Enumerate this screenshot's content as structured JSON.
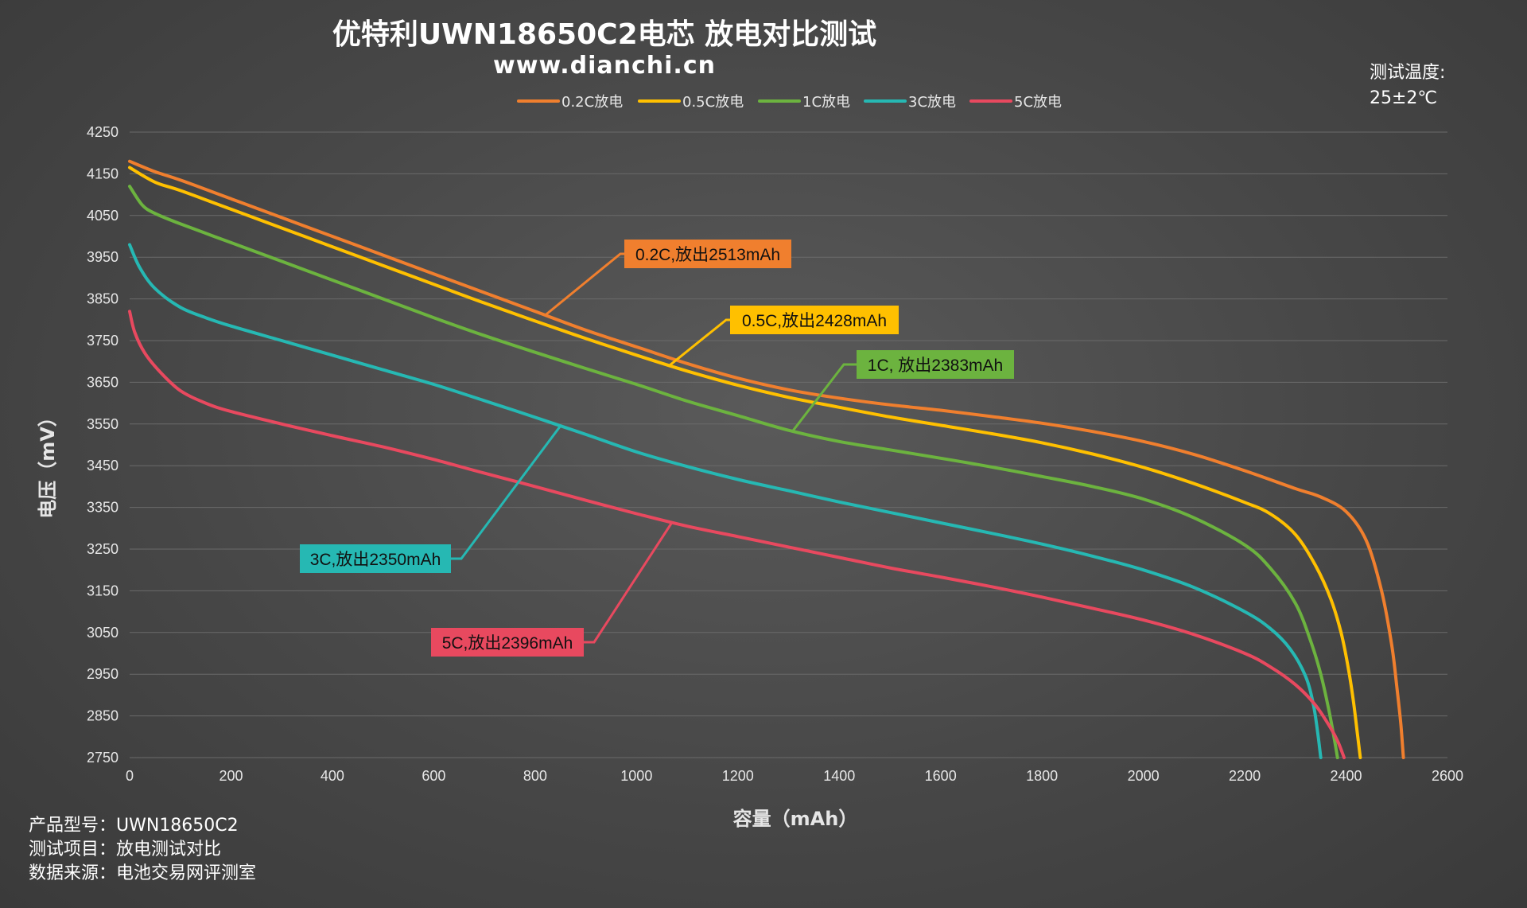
{
  "chart_data": {
    "type": "line",
    "title": "优特利UWN18650C2电芯 放电对比测试",
    "subtitle": "www.dianchi.cn",
    "xlabel": "容量（mAh）",
    "ylabel": "电压（mV）",
    "xlim": [
      0,
      2600
    ],
    "ylim": [
      2750,
      4250
    ],
    "xticks": [
      0,
      200,
      400,
      600,
      800,
      1000,
      1200,
      1400,
      1600,
      1800,
      2000,
      2200,
      2400,
      2600
    ],
    "yticks": [
      2750,
      2850,
      2950,
      3050,
      3150,
      3250,
      3350,
      3450,
      3550,
      3650,
      3750,
      3850,
      3950,
      4050,
      4150,
      4250
    ],
    "grid": "horizontal",
    "legend_position": "top-center",
    "temperature_label": "测试温度:",
    "temperature_value": "25±2℃",
    "series": [
      {
        "name": "0.2C放电",
        "color": "#f07f2e",
        "callout": "0.2C,放出2513mAh",
        "points": [
          [
            0,
            4180
          ],
          [
            50,
            4155
          ],
          [
            100,
            4135
          ],
          [
            200,
            4090
          ],
          [
            300,
            4045
          ],
          [
            400,
            4000
          ],
          [
            500,
            3955
          ],
          [
            600,
            3910
          ],
          [
            700,
            3865
          ],
          [
            800,
            3820
          ],
          [
            900,
            3775
          ],
          [
            1000,
            3735
          ],
          [
            1100,
            3695
          ],
          [
            1200,
            3660
          ],
          [
            1300,
            3632
          ],
          [
            1400,
            3612
          ],
          [
            1500,
            3596
          ],
          [
            1600,
            3583
          ],
          [
            1700,
            3568
          ],
          [
            1800,
            3552
          ],
          [
            1900,
            3532
          ],
          [
            2000,
            3508
          ],
          [
            2100,
            3477
          ],
          [
            2200,
            3438
          ],
          [
            2300,
            3395
          ],
          [
            2350,
            3375
          ],
          [
            2400,
            3340
          ],
          [
            2440,
            3270
          ],
          [
            2470,
            3150
          ],
          [
            2490,
            3020
          ],
          [
            2500,
            2920
          ],
          [
            2508,
            2830
          ],
          [
            2513,
            2750
          ]
        ]
      },
      {
        "name": "0.5C放电",
        "color": "#ffc000",
        "callout": "0.5C,放出2428mAh",
        "points": [
          [
            0,
            4165
          ],
          [
            50,
            4130
          ],
          [
            100,
            4110
          ],
          [
            200,
            4065
          ],
          [
            300,
            4020
          ],
          [
            400,
            3975
          ],
          [
            500,
            3930
          ],
          [
            600,
            3885
          ],
          [
            700,
            3840
          ],
          [
            800,
            3797
          ],
          [
            900,
            3755
          ],
          [
            1000,
            3715
          ],
          [
            1100,
            3677
          ],
          [
            1200,
            3643
          ],
          [
            1300,
            3614
          ],
          [
            1400,
            3590
          ],
          [
            1500,
            3567
          ],
          [
            1600,
            3547
          ],
          [
            1700,
            3527
          ],
          [
            1800,
            3505
          ],
          [
            1900,
            3478
          ],
          [
            2000,
            3446
          ],
          [
            2100,
            3407
          ],
          [
            2200,
            3362
          ],
          [
            2250,
            3335
          ],
          [
            2300,
            3285
          ],
          [
            2340,
            3210
          ],
          [
            2370,
            3130
          ],
          [
            2390,
            3050
          ],
          [
            2405,
            2960
          ],
          [
            2415,
            2880
          ],
          [
            2423,
            2800
          ],
          [
            2428,
            2750
          ]
        ]
      },
      {
        "name": "1C放电",
        "color": "#6cb33f",
        "callout": "1C, 放出2383mAh",
        "points": [
          [
            0,
            4120
          ],
          [
            25,
            4075
          ],
          [
            50,
            4055
          ],
          [
            100,
            4030
          ],
          [
            200,
            3985
          ],
          [
            300,
            3940
          ],
          [
            400,
            3895
          ],
          [
            500,
            3850
          ],
          [
            600,
            3805
          ],
          [
            700,
            3762
          ],
          [
            800,
            3722
          ],
          [
            900,
            3683
          ],
          [
            1000,
            3645
          ],
          [
            1100,
            3605
          ],
          [
            1200,
            3570
          ],
          [
            1300,
            3535
          ],
          [
            1400,
            3508
          ],
          [
            1500,
            3488
          ],
          [
            1600,
            3468
          ],
          [
            1700,
            3447
          ],
          [
            1800,
            3424
          ],
          [
            1900,
            3400
          ],
          [
            2000,
            3370
          ],
          [
            2100,
            3325
          ],
          [
            2200,
            3260
          ],
          [
            2250,
            3205
          ],
          [
            2300,
            3120
          ],
          [
            2330,
            3030
          ],
          [
            2350,
            2950
          ],
          [
            2365,
            2870
          ],
          [
            2376,
            2800
          ],
          [
            2383,
            2750
          ]
        ]
      },
      {
        "name": "3C放电",
        "color": "#26b8b3",
        "callout": "3C,放出2350mAh",
        "points": [
          [
            0,
            3980
          ],
          [
            20,
            3925
          ],
          [
            50,
            3875
          ],
          [
            100,
            3830
          ],
          [
            150,
            3805
          ],
          [
            200,
            3785
          ],
          [
            300,
            3750
          ],
          [
            400,
            3715
          ],
          [
            500,
            3680
          ],
          [
            600,
            3645
          ],
          [
            700,
            3606
          ],
          [
            800,
            3566
          ],
          [
            900,
            3525
          ],
          [
            1000,
            3483
          ],
          [
            1100,
            3448
          ],
          [
            1200,
            3417
          ],
          [
            1300,
            3390
          ],
          [
            1400,
            3363
          ],
          [
            1500,
            3338
          ],
          [
            1600,
            3313
          ],
          [
            1700,
            3288
          ],
          [
            1800,
            3262
          ],
          [
            1900,
            3233
          ],
          [
            2000,
            3200
          ],
          [
            2100,
            3158
          ],
          [
            2200,
            3100
          ],
          [
            2250,
            3060
          ],
          [
            2290,
            3010
          ],
          [
            2320,
            2945
          ],
          [
            2335,
            2880
          ],
          [
            2344,
            2810
          ],
          [
            2350,
            2750
          ]
        ]
      },
      {
        "name": "5C放电",
        "color": "#e8495f",
        "callout": "5C,放出2396mAh",
        "points": [
          [
            0,
            3820
          ],
          [
            10,
            3770
          ],
          [
            30,
            3720
          ],
          [
            60,
            3675
          ],
          [
            100,
            3630
          ],
          [
            150,
            3600
          ],
          [
            200,
            3580
          ],
          [
            300,
            3550
          ],
          [
            400,
            3522
          ],
          [
            500,
            3495
          ],
          [
            600,
            3465
          ],
          [
            700,
            3432
          ],
          [
            800,
            3400
          ],
          [
            900,
            3367
          ],
          [
            1000,
            3335
          ],
          [
            1100,
            3305
          ],
          [
            1200,
            3280
          ],
          [
            1300,
            3255
          ],
          [
            1400,
            3230
          ],
          [
            1500,
            3205
          ],
          [
            1600,
            3183
          ],
          [
            1700,
            3160
          ],
          [
            1800,
            3135
          ],
          [
            1900,
            3108
          ],
          [
            2000,
            3080
          ],
          [
            2100,
            3045
          ],
          [
            2200,
            3000
          ],
          [
            2250,
            2968
          ],
          [
            2300,
            2925
          ],
          [
            2340,
            2875
          ],
          [
            2370,
            2820
          ],
          [
            2385,
            2785
          ],
          [
            2396,
            2750
          ]
        ]
      }
    ]
  },
  "legend": {
    "items": [
      "0.2C放电",
      "0.5C放电",
      "1C放电",
      "3C放电",
      "5C放电"
    ]
  },
  "product_info": {
    "line1": "产品型号：UWN18650C2",
    "line2": "测试项目：放电测试对比",
    "line3": "数据来源：电池交易网评测室"
  }
}
